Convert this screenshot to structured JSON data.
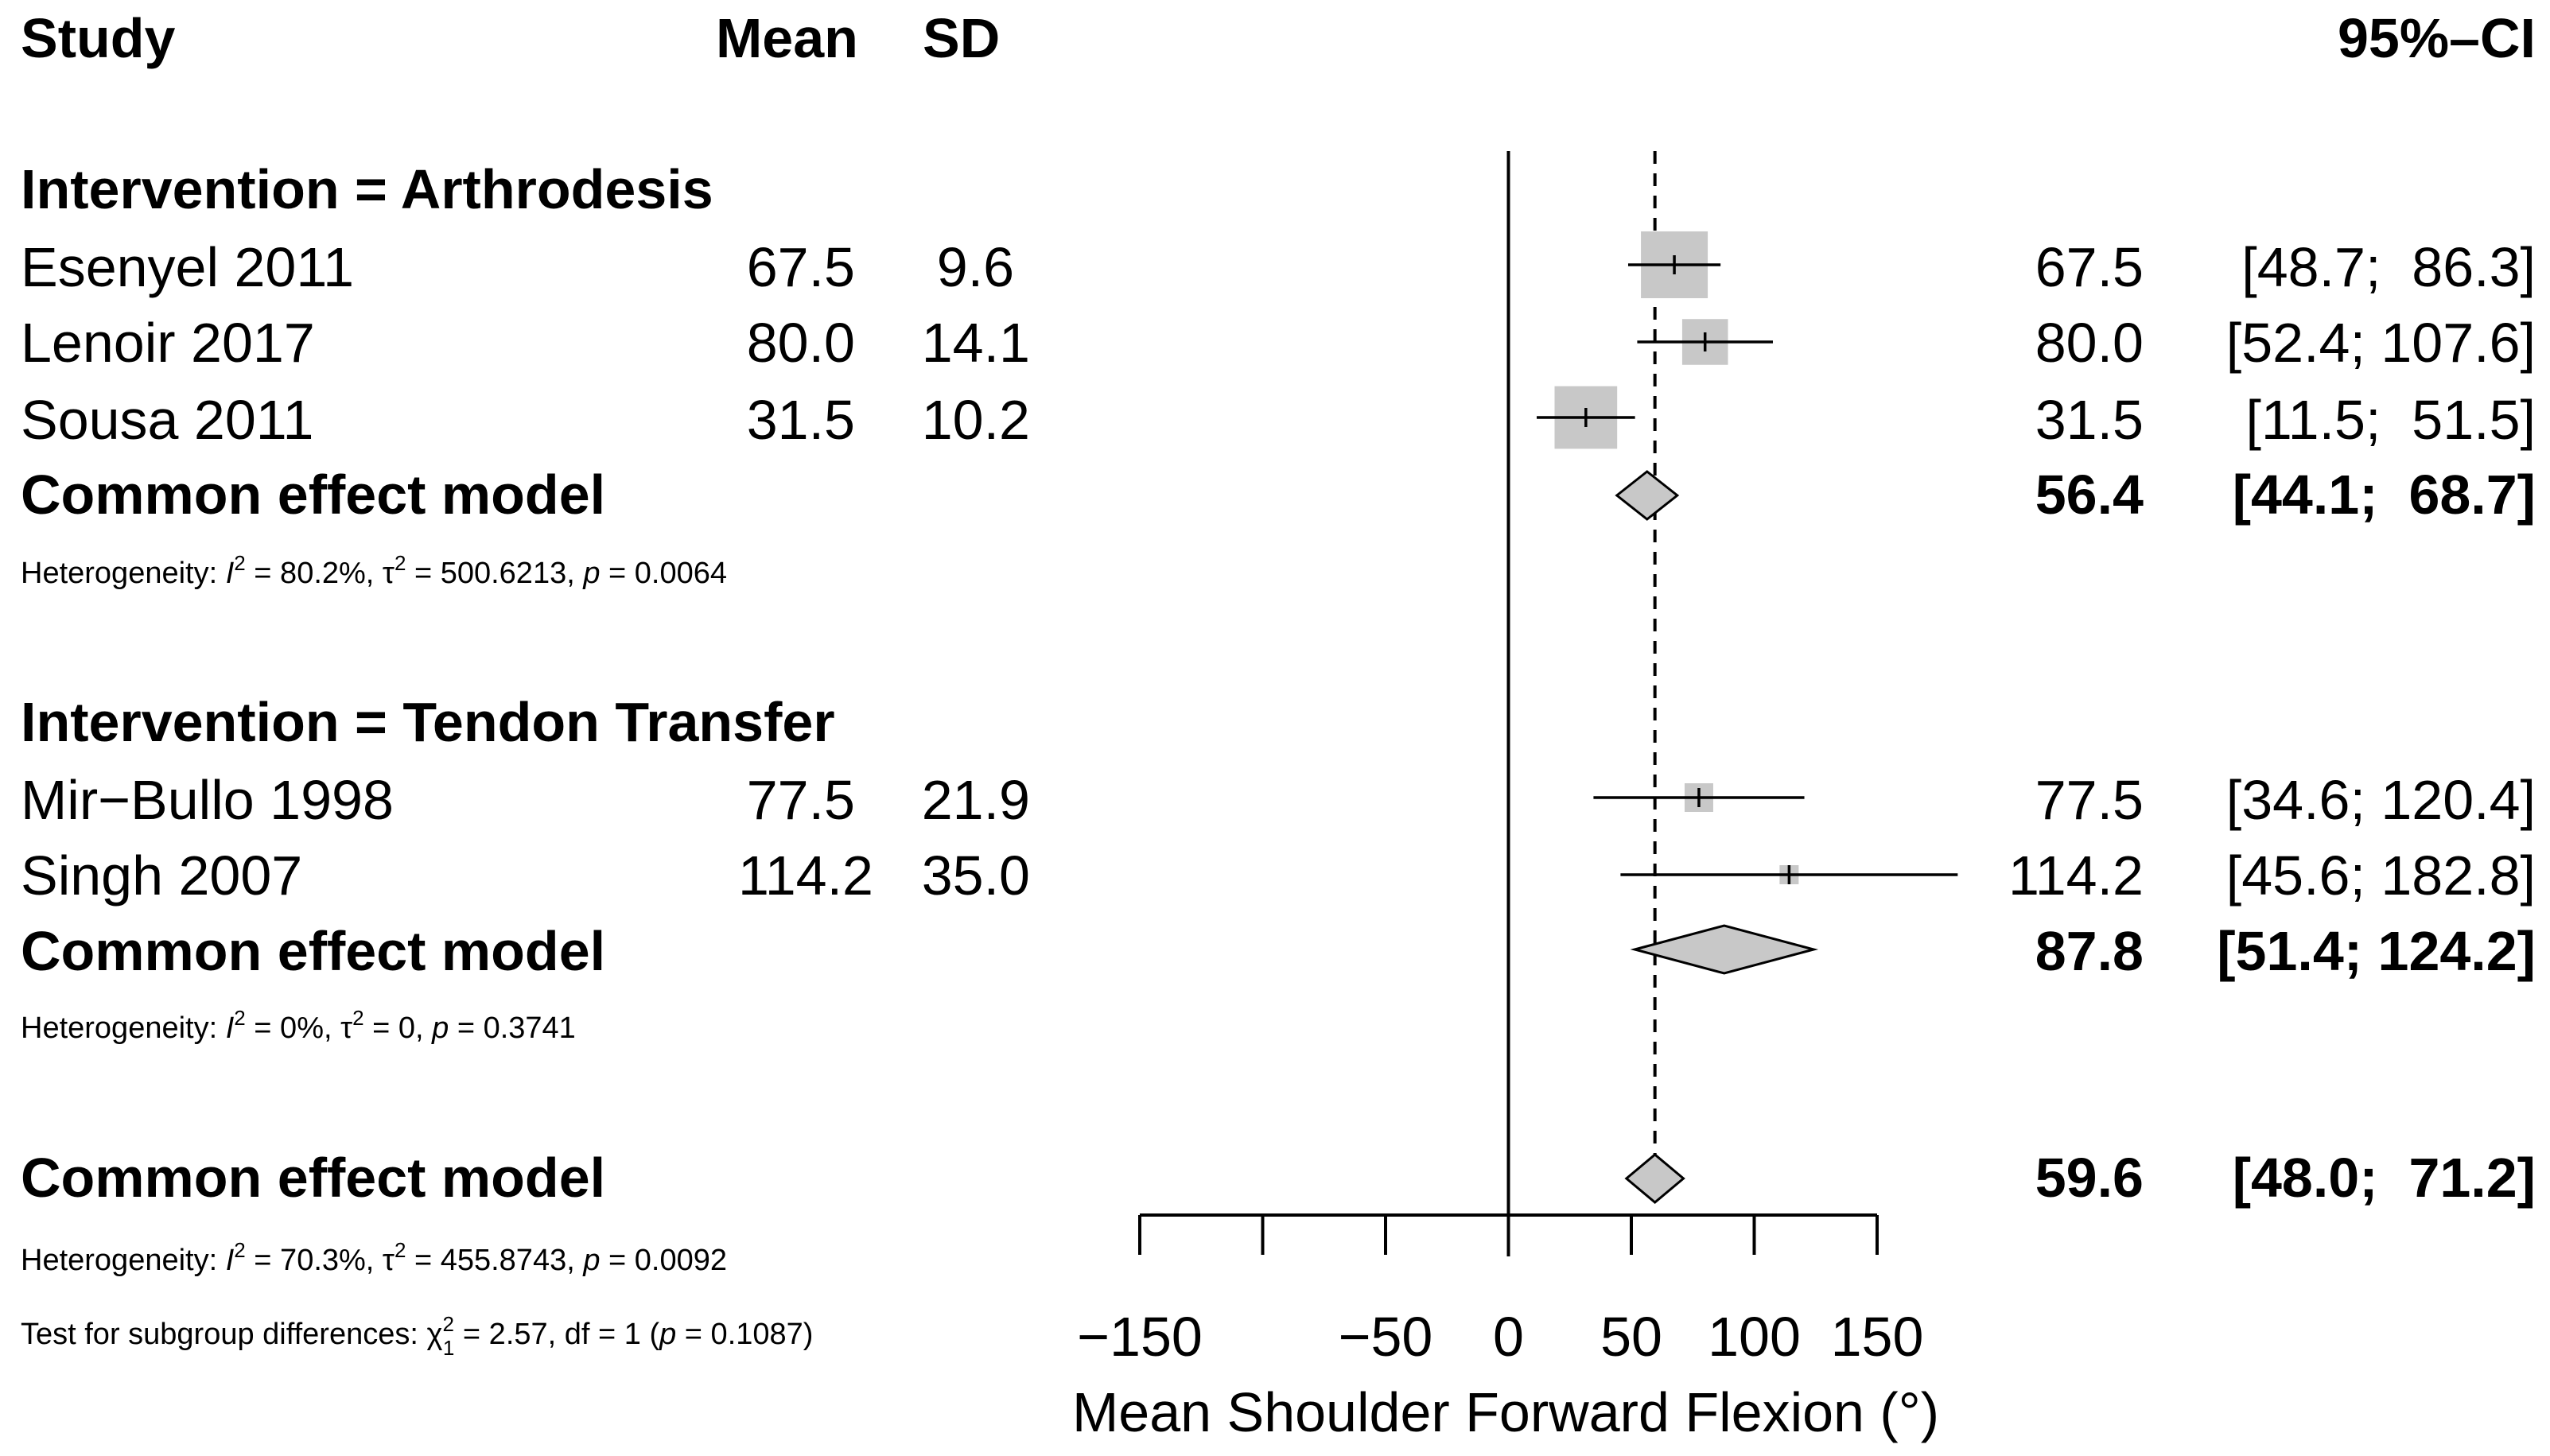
{
  "headers": {
    "study": "Study",
    "mean": "Mean",
    "sd": "SD",
    "ci": "95%–CI"
  },
  "groups": [
    {
      "title": "Intervention = Arthrodesis",
      "studies": [
        {
          "name": "Esenyel 2011",
          "mean": "67.5",
          "sd": "9.6",
          "est": "67.5",
          "ci": "[48.7;  86.3]"
        },
        {
          "name": "Lenoir 2017",
          "mean": "80.0",
          "sd": "14.1",
          "est": "80.0",
          "ci": "[52.4; 107.6]"
        },
        {
          "name": "Sousa 2011",
          "mean": "31.5",
          "sd": "10.2",
          "est": "31.5",
          "ci": "[11.5;  51.5]"
        }
      ],
      "model": {
        "label": "Common effect model",
        "est": "56.4",
        "ci": "[44.1;  68.7]"
      },
      "heterogeneity": {
        "prefix": "Heterogeneity: ",
        "I": "I",
        "I2": " = 80.2%, ",
        "tau": "τ",
        "tau2": " = 500.6213, ",
        "p": "p",
        "pval": " = 0.0064"
      }
    },
    {
      "title": "Intervention = Tendon Transfer",
      "studies": [
        {
          "name": "Mir−Bullo 1998",
          "mean": "77.5",
          "sd": "21.9",
          "est": "77.5",
          "ci": "[34.6; 120.4]"
        },
        {
          "name": "Singh 2007",
          "mean": "114.2",
          "sd": "35.0",
          "est": "114.2",
          "ci": "[45.6; 182.8]"
        }
      ],
      "model": {
        "label": "Common effect model",
        "est": "87.8",
        "ci": "[51.4; 124.2]"
      },
      "heterogeneity": {
        "prefix": "Heterogeneity: ",
        "I": "I",
        "I2": " = 0%, ",
        "tau": "τ",
        "tau2": " = 0, ",
        "p": "p",
        "pval": " = 0.3741"
      }
    }
  ],
  "overall": {
    "model": {
      "label": "Common effect model",
      "est": "59.6",
      "ci": "[48.0;  71.2]"
    },
    "heterogeneity": {
      "prefix": "Heterogeneity: ",
      "I": "I",
      "I2": " = 70.3%, ",
      "tau": "τ",
      "tau2": " = 455.8743, ",
      "p": "p",
      "pval": " = 0.0092"
    },
    "subgroup_test": {
      "prefix": "Test for subgroup differences: ",
      "chi": "χ",
      "chi2": " = 2.57, df = 1 (",
      "p": "p",
      "pval": " = 0.1087)"
    }
  },
  "chart_data": {
    "type": "forest",
    "xlabel": "Mean Shoulder Forward Flexion (°)",
    "xlim": [
      -150,
      150
    ],
    "ticks": [
      -150,
      -100,
      -50,
      0,
      50,
      100,
      150
    ],
    "tick_labels": [
      "−150",
      "",
      "−50",
      "0",
      "50",
      "100",
      "150"
    ],
    "null_line": 0,
    "reference_line": 59.6,
    "studies": [
      {
        "name": "Esenyel 2011",
        "est": 67.5,
        "lo": 48.7,
        "hi": 86.3,
        "weight": 0.49
      },
      {
        "name": "Lenoir 2017",
        "est": 80.0,
        "lo": 52.4,
        "hi": 107.6,
        "weight": 0.23
      },
      {
        "name": "Sousa 2011",
        "est": 31.5,
        "lo": 11.5,
        "hi": 51.5,
        "weight": 0.43
      },
      {
        "name": "Mir−Bullo 1998",
        "est": 77.5,
        "lo": 34.6,
        "hi": 120.4,
        "weight": 0.09
      },
      {
        "name": "Singh 2007",
        "est": 114.2,
        "lo": 45.6,
        "hi": 182.8,
        "weight": 0.04
      }
    ],
    "models": [
      {
        "name": "Arthrodesis common effect",
        "est": 56.4,
        "lo": 44.1,
        "hi": 68.7
      },
      {
        "name": "Tendon Transfer common effect",
        "est": 87.8,
        "lo": 51.4,
        "hi": 124.2
      },
      {
        "name": "Overall common effect",
        "est": 59.6,
        "lo": 48.0,
        "hi": 71.2
      }
    ]
  }
}
